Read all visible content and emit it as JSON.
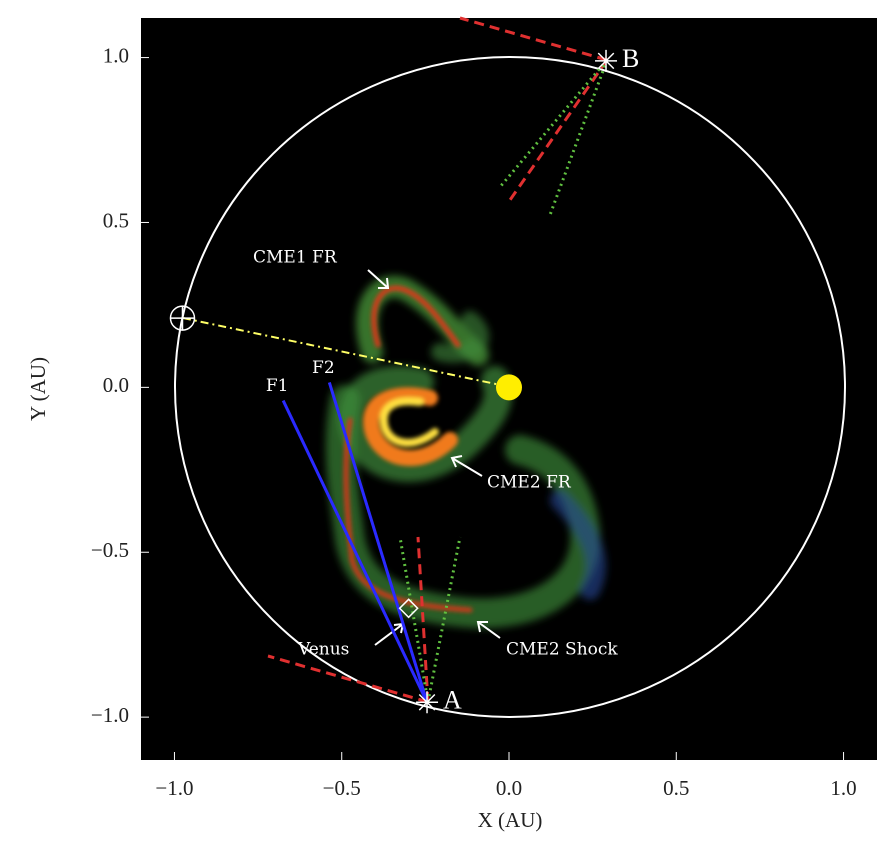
{
  "chart_data": {
    "type": "scatter",
    "xlabel": "X (AU)",
    "ylabel": "Y (AU)",
    "xlim": [
      -1.1,
      1.1
    ],
    "ylim": [
      -1.13,
      1.12
    ],
    "xticks": [
      {
        "value": -1,
        "label": "−1.0"
      },
      {
        "value": -0.5,
        "label": "−0.5"
      },
      {
        "value": 0,
        "label": "0.0"
      },
      0.5,
      {
        "value": 1,
        "label": "1.0"
      }
    ],
    "yticks": [
      {
        "value": -1,
        "label": "−1.0"
      },
      {
        "value": -0.5,
        "label": "−0.5"
      },
      {
        "value": 0,
        "label": "0.0"
      },
      0.5,
      {
        "value": 1,
        "label": "1.0"
      }
    ],
    "points": [
      {
        "x": 0,
        "y": 0,
        "marker": "disc",
        "color": "#ffee00"
      },
      {
        "x": -0.976,
        "y": 0.21,
        "marker": "crossed-circle",
        "color": "#ffffff"
      },
      {
        "x": -0.245,
        "y": -0.955,
        "marker": "asterisk",
        "color": "#ffffff",
        "label": "A"
      },
      {
        "x": 0.29,
        "y": 0.99,
        "marker": "asterisk",
        "color": "#ffffff",
        "label": "B"
      },
      {
        "x": -0.3,
        "y": -0.67,
        "marker": "diamond",
        "color": "#ffffff"
      }
    ],
    "lines": [
      {
        "label": "F1",
        "x": [
          -0.675,
          -0.245
        ],
        "y": [
          -0.04,
          -0.955
        ],
        "color": "#2a2aff"
      },
      {
        "label": "F2",
        "x": [
          -0.537,
          -0.245
        ],
        "y": [
          0.015,
          -0.955
        ],
        "color": "#2a2aff"
      }
    ],
    "annotations": [
      "CME1 FR",
      "CME2 FR",
      "CME2 Shock",
      "Venus"
    ]
  }
}
